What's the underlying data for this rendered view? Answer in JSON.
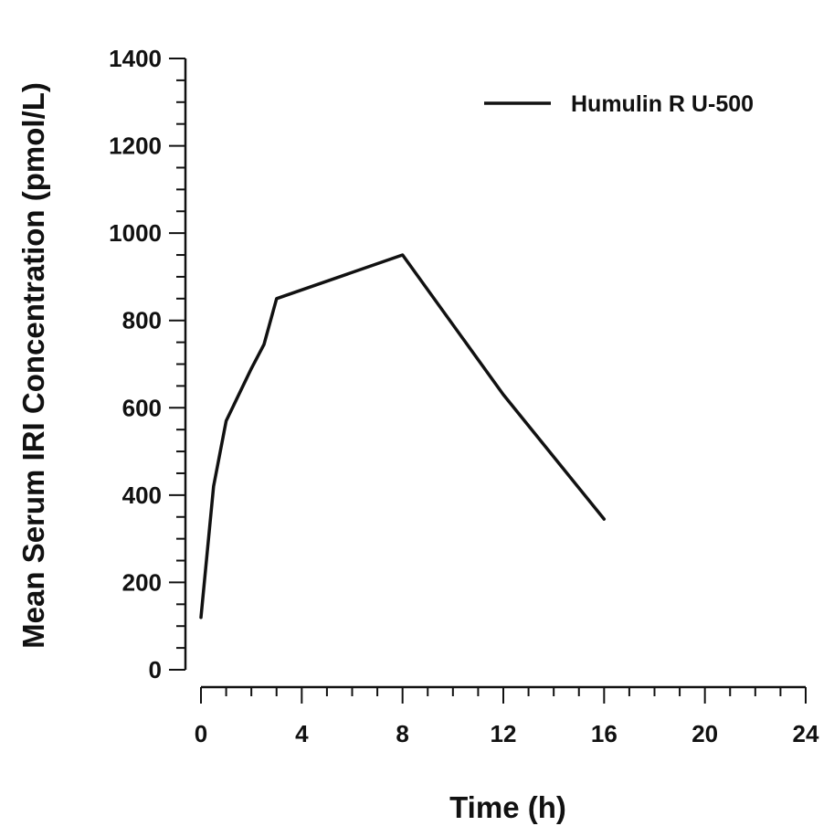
{
  "chart_data": {
    "type": "line",
    "title": "",
    "xlabel": "Time (h)",
    "ylabel": "Mean Serum IRI Concentration (pmol/L)",
    "xlim": [
      0,
      24
    ],
    "ylim": [
      0,
      1400
    ],
    "x_ticks": [
      0,
      4,
      8,
      12,
      16,
      20,
      24
    ],
    "x_minor_step": 1,
    "y_ticks": [
      0,
      200,
      400,
      600,
      800,
      1000,
      1200,
      1400
    ],
    "y_minor_step": 50,
    "grid": false,
    "legend_position": "top-right",
    "series": [
      {
        "name": "Humulin R U-500",
        "color": "#111111",
        "x": [
          0,
          0.5,
          1,
          2,
          2.5,
          3,
          8,
          12,
          16
        ],
        "y": [
          120,
          420,
          570,
          690,
          745,
          850,
          950,
          630,
          345
        ]
      }
    ]
  }
}
